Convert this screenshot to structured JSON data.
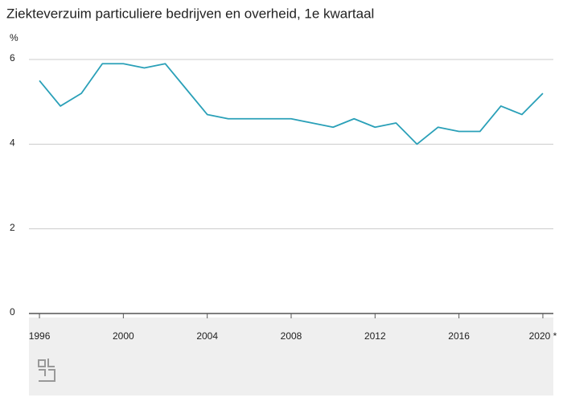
{
  "chart_data": {
    "type": "line",
    "title": "Ziekteverzuim particuliere bedrijven en overheid, 1e kwartaal",
    "y_unit": "%",
    "x": [
      1996,
      1997,
      1998,
      1999,
      2000,
      2001,
      2002,
      2003,
      2004,
      2005,
      2006,
      2007,
      2008,
      2009,
      2010,
      2011,
      2012,
      2013,
      2014,
      2015,
      2016,
      2017,
      2018,
      2019,
      2020
    ],
    "series": [
      {
        "color": "#2aa0b8",
        "values": [
          5.5,
          4.9,
          5.2,
          5.9,
          5.9,
          5.8,
          5.9,
          5.3,
          4.7,
          4.6,
          4.6,
          4.6,
          4.6,
          4.5,
          4.4,
          4.6,
          4.4,
          4.5,
          4.0,
          4.4,
          4.3,
          4.3,
          4.9,
          4.7,
          5.2
        ]
      }
    ],
    "xlim": [
      1995.5,
      2020.5
    ],
    "xticks": [
      1996,
      2000,
      2004,
      2008,
      2012,
      2016,
      {
        "value": 2020,
        "label": "2020 *"
      }
    ],
    "ylim": [
      0,
      6
    ],
    "yticks": [
      0,
      2,
      4,
      6
    ],
    "grid": true
  }
}
